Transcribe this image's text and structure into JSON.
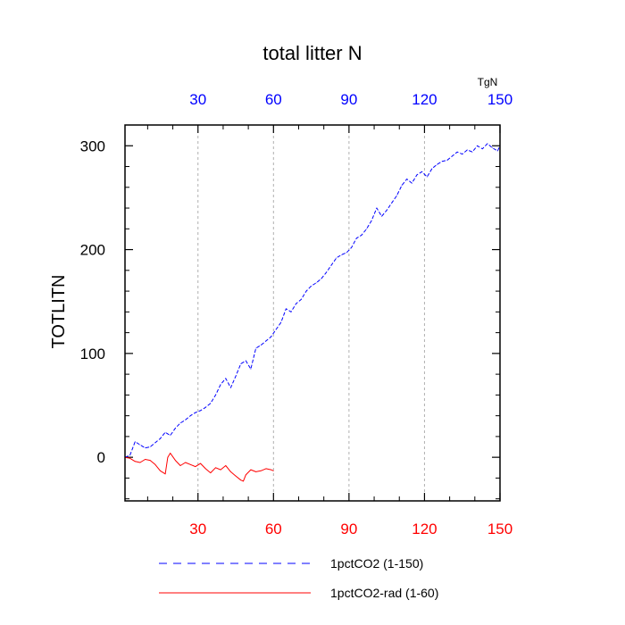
{
  "chart_data": {
    "type": "line",
    "title": "total litter N",
    "ylabel": "TOTLITN",
    "units": "TgN",
    "xlim": [
      1,
      150
    ],
    "ylim": [
      -42,
      320
    ],
    "x_ticks": [
      30,
      60,
      90,
      120,
      150
    ],
    "y_ticks": [
      0,
      100,
      200,
      300
    ],
    "grid": "vertical dashed at x ticks",
    "legend_position": "bottom",
    "series": [
      {
        "name": "1pctCO2 (1-150)",
        "color": "#0000ff",
        "style": "dashed",
        "axis_label_color": "#0000ff",
        "x": [
          1,
          3,
          5,
          7,
          9,
          11,
          13,
          15,
          17,
          19,
          21,
          23,
          25,
          27,
          29,
          31,
          33,
          35,
          37,
          39,
          41,
          43,
          45,
          47,
          49,
          51,
          53,
          55,
          57,
          59,
          61,
          63,
          65,
          67,
          69,
          71,
          73,
          75,
          77,
          79,
          81,
          83,
          85,
          87,
          89,
          91,
          93,
          95,
          97,
          99,
          101,
          103,
          105,
          107,
          109,
          111,
          113,
          115,
          117,
          119,
          121,
          123,
          125,
          127,
          129,
          131,
          133,
          135,
          137,
          139,
          141,
          143,
          145,
          147,
          149,
          150
        ],
        "values": [
          0,
          2,
          15,
          12,
          9,
          10,
          14,
          18,
          24,
          21,
          28,
          33,
          36,
          40,
          43,
          45,
          48,
          52,
          60,
          70,
          76,
          67,
          78,
          90,
          93,
          85,
          105,
          108,
          112,
          116,
          123,
          130,
          143,
          140,
          148,
          152,
          160,
          165,
          168,
          172,
          178,
          185,
          192,
          195,
          197,
          202,
          211,
          214,
          220,
          228,
          240,
          232,
          238,
          245,
          252,
          262,
          268,
          264,
          272,
          275,
          270,
          278,
          282,
          285,
          286,
          290,
          294,
          292,
          296,
          294,
          300,
          297,
          302,
          298,
          295,
          300
        ]
      },
      {
        "name": "1pctCO2-rad (1-60)",
        "color": "#ff0000",
        "style": "solid",
        "axis_label_color": "#ff0000",
        "x": [
          1,
          3,
          5,
          7,
          9,
          11,
          13,
          15,
          17,
          18,
          19,
          21,
          23,
          25,
          27,
          29,
          31,
          33,
          35,
          37,
          39,
          41,
          43,
          45,
          47,
          48,
          49,
          51,
          53,
          55,
          57,
          59,
          60
        ],
        "values": [
          0,
          -1,
          -4,
          -5,
          -2,
          -3,
          -7,
          -13,
          -16,
          0,
          4,
          -3,
          -8,
          -5,
          -7,
          -9,
          -6,
          -11,
          -15,
          -10,
          -12,
          -8,
          -14,
          -18,
          -22,
          -23,
          -17,
          -12,
          -14,
          -13,
          -11,
          -12,
          -13
        ]
      }
    ]
  }
}
